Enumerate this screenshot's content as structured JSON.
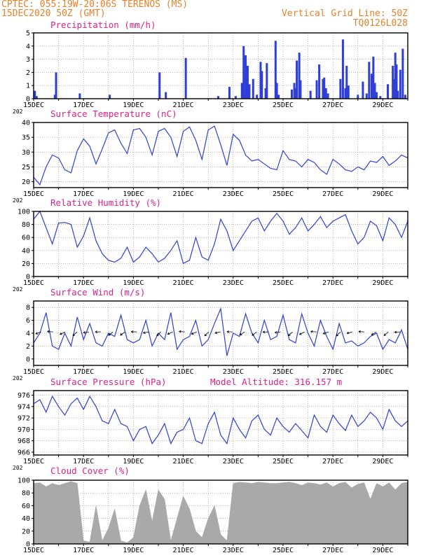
{
  "header": {
    "line1_left": "CPTEC:   055:19W-20:06S  TERENOS (MS)",
    "line2_left": "15DEC2020 50Z (GMT)",
    "line1_right": "Vertical Grid Line: 50Z",
    "line2_right": "TQ0126L028",
    "altitude": "Model Altitude: 316.157 m"
  },
  "colors": {
    "header": "#e8822a",
    "title": "#e0208a",
    "line": "#2f3fd6",
    "bar": "#2f3fd6",
    "cloud": "#a9a9a9",
    "arrow": "#000000"
  },
  "x_axis": {
    "tick_labels": [
      "15DEC",
      "17DEC",
      "19DEC",
      "21DEC",
      "23DEC",
      "25DEC",
      "27DEC",
      "29DEC"
    ],
    "tick_days": [
      0,
      2,
      4,
      6,
      8,
      10,
      12,
      14
    ],
    "year_stub": "202",
    "range_days": [
      0,
      15
    ]
  },
  "chart_data": [
    {
      "type": "bar",
      "title": "Precipitation (mm/h)",
      "ylim": [
        0,
        5
      ],
      "yticks": [
        0,
        1,
        2,
        3,
        4,
        5
      ],
      "x_days": [
        0.05,
        0.12,
        0.85,
        0.9,
        1.85,
        3.05,
        5.05,
        5.3,
        6.1,
        7.4,
        7.85,
        8.1,
        8.35,
        8.42,
        8.5,
        8.58,
        8.65,
        8.8,
        8.95,
        9.1,
        9.15,
        9.3,
        9.35,
        9.7,
        9.75,
        9.82,
        10.35,
        10.45,
        10.5,
        10.55,
        10.65,
        10.7,
        11.1,
        11.35,
        11.45,
        11.6,
        11.65,
        11.72,
        11.8,
        12.3,
        12.4,
        12.5,
        12.55,
        12.62,
        13.0,
        13.2,
        13.35,
        13.45,
        13.55,
        13.62,
        13.68,
        13.75,
        13.9,
        14.2,
        14.4,
        14.45,
        14.5,
        14.55,
        14.6,
        14.7,
        14.8,
        14.9
      ],
      "values": [
        0.6,
        0.2,
        0.3,
        2.0,
        0.4,
        0.3,
        2.0,
        0.5,
        3.1,
        0.2,
        0.9,
        0.2,
        1.2,
        4.0,
        3.3,
        2.5,
        1.1,
        1.5,
        0.3,
        2.8,
        2.1,
        0.8,
        2.7,
        4.4,
        1.2,
        0.3,
        0.7,
        1.2,
        0.8,
        2.9,
        3.5,
        1.4,
        0.6,
        1.4,
        2.6,
        1.5,
        1.6,
        0.8,
        0.4,
        1.5,
        4.5,
        0.8,
        2.5,
        1.0,
        0.3,
        1.3,
        0.4,
        2.8,
        1.9,
        3.2,
        1.2,
        0.5,
        0.2,
        1.1,
        2.5,
        1.5,
        3.5,
        2.6,
        0.6,
        2.2,
        3.8,
        0.3
      ]
    },
    {
      "type": "line",
      "title": "Surface Temperature (nC)",
      "ylim": [
        18,
        40
      ],
      "yticks": [
        20,
        25,
        30,
        35,
        40
      ],
      "x": [
        0,
        0.25,
        0.5,
        0.75,
        1.0,
        1.25,
        1.5,
        1.75,
        2.0,
        2.25,
        2.5,
        2.75,
        3.0,
        3.25,
        3.5,
        3.75,
        4.0,
        4.25,
        4.5,
        4.75,
        5.0,
        5.25,
        5.5,
        5.75,
        6.0,
        6.25,
        6.5,
        6.75,
        7.0,
        7.25,
        7.5,
        7.75,
        8.0,
        8.25,
        8.5,
        8.75,
        9.0,
        9.25,
        9.5,
        9.75,
        10.0,
        10.25,
        10.5,
        10.75,
        11.0,
        11.25,
        11.5,
        11.75,
        12.0,
        12.25,
        12.5,
        12.75,
        13.0,
        13.25,
        13.5,
        13.75,
        14.0,
        14.25,
        14.5,
        14.75,
        15.0
      ],
      "values": [
        21.5,
        19.0,
        25.0,
        29.0,
        28.0,
        24.0,
        23.0,
        30.5,
        34.5,
        32.0,
        26.0,
        31.0,
        36.5,
        37.5,
        33.0,
        29.5,
        37.5,
        38.0,
        35.0,
        29.0,
        37.0,
        38.0,
        35.0,
        28.5,
        37.0,
        38.5,
        34.0,
        27.5,
        37.5,
        38.8,
        32.5,
        25.5,
        36.0,
        34.0,
        29.0,
        27.0,
        27.5,
        26.0,
        24.5,
        24.0,
        30.5,
        27.5,
        27.0,
        25.0,
        27.5,
        26.5,
        24.0,
        22.5,
        27.5,
        26.0,
        24.0,
        23.5,
        25.0,
        24.0,
        27.0,
        26.5,
        28.5,
        25.5,
        27.0,
        29.0,
        28.0
      ]
    },
    {
      "type": "line",
      "title": "Relative Humidity (%)",
      "ylim": [
        0,
        100
      ],
      "yticks": [
        0,
        20,
        40,
        60,
        80,
        100
      ],
      "x": [
        0,
        0.25,
        0.5,
        0.75,
        1.0,
        1.25,
        1.5,
        1.75,
        2.0,
        2.25,
        2.5,
        2.75,
        3.0,
        3.25,
        3.5,
        3.75,
        4.0,
        4.25,
        4.5,
        4.75,
        5.0,
        5.25,
        5.5,
        5.75,
        6.0,
        6.25,
        6.5,
        6.75,
        7.0,
        7.25,
        7.5,
        7.75,
        8.0,
        8.25,
        8.5,
        8.75,
        9.0,
        9.25,
        9.5,
        9.75,
        10.0,
        10.25,
        10.5,
        10.75,
        11.0,
        11.25,
        11.5,
        11.75,
        12.0,
        12.25,
        12.5,
        12.75,
        13.0,
        13.25,
        13.5,
        13.75,
        14.0,
        14.25,
        14.5,
        14.75,
        15.0
      ],
      "values": [
        88,
        100,
        75,
        50,
        82,
        83,
        80,
        45,
        62,
        90,
        55,
        35,
        25,
        22,
        28,
        45,
        22,
        30,
        45,
        35,
        22,
        28,
        40,
        55,
        20,
        25,
        60,
        30,
        25,
        50,
        88,
        70,
        40,
        55,
        70,
        85,
        90,
        70,
        85,
        97,
        85,
        65,
        75,
        90,
        70,
        80,
        92,
        75,
        85,
        90,
        95,
        70,
        50,
        60,
        85,
        78,
        55,
        90,
        80,
        60,
        85
      ]
    },
    {
      "type": "line",
      "title": "Surface Wind (m/s)",
      "ylim": [
        -1,
        9
      ],
      "yticks": [
        0,
        2,
        4,
        6,
        8
      ],
      "x": [
        0,
        0.25,
        0.5,
        0.75,
        1.0,
        1.25,
        1.5,
        1.75,
        2.0,
        2.25,
        2.5,
        2.75,
        3.0,
        3.25,
        3.5,
        3.75,
        4.0,
        4.25,
        4.5,
        4.75,
        5.0,
        5.25,
        5.5,
        5.75,
        6.0,
        6.25,
        6.5,
        6.75,
        7.0,
        7.25,
        7.5,
        7.75,
        8.0,
        8.25,
        8.5,
        8.75,
        9.0,
        9.25,
        9.5,
        9.75,
        10.0,
        10.25,
        10.5,
        10.75,
        11.0,
        11.25,
        11.5,
        11.75,
        12.0,
        12.25,
        12.5,
        12.75,
        13.0,
        13.25,
        13.5,
        13.75,
        14.0,
        14.25,
        14.5,
        14.75,
        15.0
      ],
      "values": [
        2.5,
        4.0,
        7.2,
        2.0,
        1.5,
        4.0,
        2.0,
        6.5,
        3.0,
        5.5,
        2.5,
        2.0,
        4.0,
        3.5,
        6.8,
        3.0,
        2.5,
        3.0,
        6.0,
        2.0,
        4.0,
        3.0,
        7.2,
        1.5,
        3.0,
        3.5,
        6.0,
        2.0,
        3.0,
        5.5,
        7.8,
        0.5,
        4.0,
        3.5,
        7.0,
        4.0,
        2.5,
        6.0,
        3.0,
        3.5,
        6.8,
        3.0,
        2.5,
        7.0,
        4.0,
        2.0,
        6.0,
        3.5,
        1.5,
        5.5,
        2.5,
        2.8,
        2.0,
        2.5,
        3.5,
        4.0,
        1.5,
        3.0,
        2.5,
        4.5,
        1.5
      ]
    },
    {
      "type": "line",
      "title": "Surface Pressure (hPa)",
      "ylim": [
        965.5,
        976.8
      ],
      "yticks": [
        966,
        968,
        970,
        972,
        974,
        976
      ],
      "x": [
        0,
        0.25,
        0.5,
        0.75,
        1.0,
        1.25,
        1.5,
        1.75,
        2.0,
        2.25,
        2.5,
        2.75,
        3.0,
        3.25,
        3.5,
        3.75,
        4.0,
        4.25,
        4.5,
        4.75,
        5.0,
        5.25,
        5.5,
        5.75,
        6.0,
        6.25,
        6.5,
        6.75,
        7.0,
        7.25,
        7.5,
        7.75,
        8.0,
        8.25,
        8.5,
        8.75,
        9.0,
        9.25,
        9.5,
        9.75,
        10.0,
        10.25,
        10.5,
        10.75,
        11.0,
        11.25,
        11.5,
        11.75,
        12.0,
        12.25,
        12.5,
        12.75,
        13.0,
        13.25,
        13.5,
        13.75,
        14.0,
        14.25,
        14.5,
        14.75,
        15.0
      ],
      "values": [
        974.5,
        975.2,
        973.0,
        975.8,
        974.0,
        972.5,
        974.5,
        975.5,
        973.5,
        975.8,
        974.0,
        971.5,
        971.0,
        973.5,
        971.0,
        970.5,
        968.0,
        970.0,
        970.5,
        967.5,
        969.0,
        971.0,
        967.5,
        969.5,
        970.0,
        972.0,
        968.0,
        967.5,
        971.0,
        973.0,
        969.0,
        967.5,
        972.0,
        970.0,
        968.5,
        971.5,
        972.5,
        970.0,
        969.0,
        972.0,
        970.5,
        969.5,
        971.0,
        969.8,
        968.5,
        972.5,
        970.5,
        969.5,
        972.5,
        971.0,
        969.8,
        972.5,
        970.5,
        971.5,
        973.0,
        972.0,
        970.0,
        973.5,
        971.5,
        970.5,
        971.5
      ]
    },
    {
      "type": "area",
      "title": "Cloud Cover (%)",
      "ylim": [
        0,
        100
      ],
      "yticks": [
        0,
        20,
        40,
        60,
        80,
        100
      ],
      "x": [
        0,
        0.25,
        0.5,
        0.75,
        1.0,
        1.25,
        1.5,
        1.75,
        2.0,
        2.25,
        2.5,
        2.75,
        3.0,
        3.25,
        3.5,
        3.75,
        4.0,
        4.25,
        4.5,
        4.75,
        5.0,
        5.25,
        5.5,
        5.75,
        6.0,
        6.25,
        6.5,
        6.75,
        7.0,
        7.25,
        7.5,
        7.75,
        8.0,
        8.25,
        8.5,
        8.75,
        9.0,
        9.25,
        9.5,
        9.75,
        10.0,
        10.25,
        10.5,
        10.75,
        11.0,
        11.25,
        11.5,
        11.75,
        12.0,
        12.25,
        12.5,
        12.75,
        13.0,
        13.25,
        13.5,
        13.75,
        14.0,
        14.25,
        14.5,
        14.75,
        15.0
      ],
      "values": [
        95,
        96,
        90,
        95,
        92,
        95,
        98,
        95,
        5,
        3,
        60,
        5,
        25,
        55,
        5,
        2,
        10,
        60,
        85,
        35,
        85,
        70,
        5,
        40,
        75,
        55,
        20,
        10,
        40,
        60,
        15,
        5,
        95,
        97,
        96,
        95,
        97,
        96,
        95,
        95,
        96,
        97,
        95,
        92,
        96,
        95,
        93,
        96,
        90,
        95,
        97,
        88,
        94,
        96,
        70,
        95,
        90,
        96,
        85,
        95,
        97
      ]
    }
  ]
}
